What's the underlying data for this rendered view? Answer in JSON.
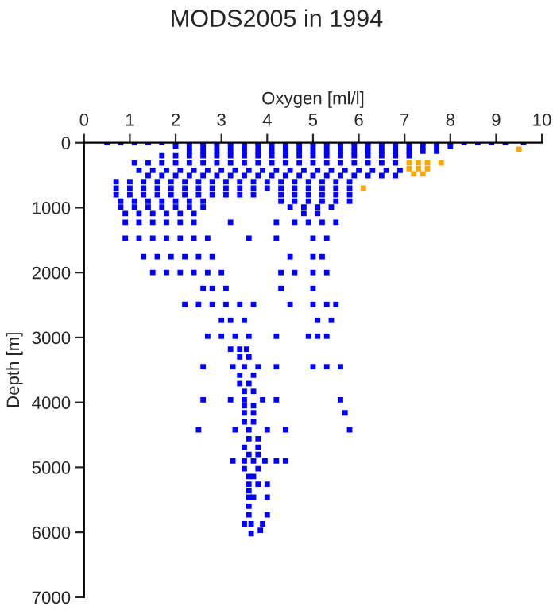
{
  "chart_data": {
    "type": "scatter",
    "title": "MODS2005 in 1994",
    "xlabel": "Oxygen [ml/l]",
    "ylabel": "Depth [m]",
    "xlim": [
      0,
      10
    ],
    "xticks": [
      0,
      1,
      2,
      3,
      4,
      5,
      6,
      7,
      8,
      9,
      10
    ],
    "ylim": [
      7000,
      0
    ],
    "yticks": [
      0,
      1000,
      2000,
      3000,
      4000,
      5000,
      6000,
      7000
    ],
    "grid": false,
    "legend": false,
    "marker": "square",
    "series": [
      {
        "color": "#0000ff",
        "x": [
          0.5,
          0.8,
          1.1,
          1.4,
          1.7,
          2.0,
          2.3,
          2.6,
          2.9,
          3.2,
          3.5,
          3.8,
          4.1,
          4.4,
          4.7,
          5.0,
          5.3,
          5.6,
          5.9,
          6.2,
          6.5,
          6.8,
          7.1,
          7.4,
          7.7,
          8.0,
          8.3,
          8.6,
          8.9,
          9.2,
          9.6
        ],
        "values": [
          0,
          0,
          0,
          0,
          0,
          0,
          0,
          0,
          0,
          0,
          0,
          0,
          0,
          0,
          0,
          0,
          0,
          0,
          0,
          0,
          0,
          0,
          0,
          0,
          0,
          0,
          0,
          0,
          0,
          0,
          0
        ]
      },
      {
        "color": "#0000ff",
        "x": [
          2.0,
          2.3,
          2.6,
          2.9,
          3.2,
          3.5,
          3.8,
          4.1,
          4.4,
          4.7,
          5.0,
          5.3,
          5.6,
          5.9,
          6.2,
          6.5,
          6.8,
          7.1,
          7.4,
          7.7,
          8.0
        ],
        "values": [
          60,
          60,
          60,
          60,
          60,
          60,
          60,
          60,
          60,
          60,
          60,
          60,
          60,
          60,
          60,
          60,
          60,
          60,
          60,
          60,
          60
        ]
      },
      {
        "color": "#0000ff",
        "x": [
          2.3,
          2.6,
          2.9,
          3.2,
          3.5,
          3.8,
          4.1,
          4.4,
          4.7,
          5.0,
          5.3,
          5.6,
          5.9,
          6.2,
          6.5,
          6.8,
          7.1,
          7.4,
          7.7
        ],
        "values": [
          130,
          130,
          130,
          130,
          130,
          130,
          130,
          130,
          130,
          130,
          130,
          130,
          130,
          130,
          130,
          130,
          130,
          130,
          130
        ]
      },
      {
        "color": "#0000ff",
        "x": [
          1.7,
          2.0,
          2.3,
          2.6,
          2.9,
          3.2,
          3.5,
          3.8,
          4.1,
          4.4,
          4.7,
          5.0,
          5.3,
          5.6,
          5.9,
          6.2,
          6.5,
          6.8,
          7.1
        ],
        "values": [
          200,
          200,
          200,
          200,
          200,
          200,
          200,
          200,
          200,
          200,
          200,
          200,
          200,
          200,
          200,
          200,
          200,
          200,
          200
        ]
      },
      {
        "color": "#0000ff",
        "x": [
          1.1,
          1.4,
          1.7,
          2.0,
          2.3,
          2.6,
          2.9,
          3.2,
          3.5,
          3.8,
          4.1,
          4.4,
          4.7,
          5.0,
          5.3,
          5.6,
          5.9,
          6.2,
          6.5,
          6.8
        ],
        "values": [
          310,
          310,
          310,
          310,
          310,
          310,
          310,
          310,
          310,
          310,
          310,
          310,
          310,
          310,
          310,
          310,
          310,
          310,
          310,
          310
        ]
      },
      {
        "color": "#0000ff",
        "x": [
          1.2,
          1.5,
          1.8,
          2.1,
          2.4,
          2.7,
          3.0,
          3.3,
          3.6,
          3.9,
          4.2,
          4.5,
          4.8,
          5.1,
          5.4,
          5.7,
          6.0,
          6.3,
          6.6,
          6.9
        ],
        "values": [
          425,
          425,
          425,
          425,
          425,
          425,
          425,
          425,
          425,
          425,
          425,
          425,
          425,
          425,
          425,
          425,
          425,
          425,
          425,
          425
        ]
      },
      {
        "color": "#0000ff",
        "x": [
          1.4,
          1.7,
          2.0,
          2.3,
          2.6,
          2.9,
          3.2,
          3.5,
          3.8,
          4.1,
          4.4,
          4.7,
          5.0,
          5.3,
          5.6,
          5.9,
          6.2,
          6.5,
          6.8
        ],
        "values": [
          505,
          505,
          505,
          505,
          505,
          505,
          505,
          505,
          505,
          505,
          505,
          505,
          505,
          505,
          505,
          505,
          505,
          505,
          505
        ]
      },
      {
        "color": "#0000ff",
        "x": [
          0.7,
          1.0,
          1.3,
          1.6,
          1.9,
          2.2,
          2.5,
          2.8,
          3.1,
          3.4,
          3.7,
          4.0,
          4.3,
          4.6,
          4.9,
          5.2,
          5.5,
          5.8
        ],
        "values": [
          600,
          600,
          600,
          600,
          600,
          600,
          600,
          600,
          600,
          600,
          600,
          600,
          600,
          600,
          600,
          600,
          600,
          600
        ]
      },
      {
        "color": "#0000ff",
        "x": [
          0.7,
          1.0,
          1.3,
          1.6,
          1.9,
          2.2,
          2.5,
          2.8,
          3.1,
          3.4,
          3.7,
          4.0,
          4.3,
          4.6,
          4.9,
          5.2,
          5.5,
          5.8
        ],
        "values": [
          700,
          700,
          700,
          700,
          700,
          700,
          700,
          700,
          700,
          700,
          700,
          700,
          700,
          700,
          700,
          700,
          700,
          700
        ]
      },
      {
        "color": "#0000ff",
        "x": [
          0.7,
          1.0,
          1.3,
          1.6,
          1.9,
          2.2,
          2.5,
          2.8,
          3.1,
          3.4,
          3.7,
          4.3,
          4.6,
          4.9,
          5.2,
          5.5,
          5.8
        ],
        "values": [
          800,
          800,
          800,
          800,
          800,
          800,
          800,
          800,
          800,
          800,
          800,
          800,
          800,
          800,
          800,
          800,
          800
        ]
      },
      {
        "color": "#0000ff",
        "x": [
          0.8,
          1.1,
          1.4,
          1.7,
          2.0,
          2.3,
          2.6,
          4.3,
          4.6,
          4.9,
          5.2,
          5.5,
          5.8
        ],
        "values": [
          900,
          900,
          900,
          900,
          900,
          900,
          900,
          900,
          900,
          900,
          900,
          900,
          900
        ]
      },
      {
        "color": "#0000ff",
        "x": [
          0.8,
          1.1,
          1.4,
          1.7,
          2.0,
          2.3,
          2.6,
          4.5,
          4.8,
          5.1,
          5.4
        ],
        "values": [
          990,
          990,
          990,
          990,
          990,
          990,
          990,
          990,
          990,
          990,
          990
        ]
      },
      {
        "color": "#0000ff",
        "x": [
          0.9,
          1.2,
          1.5,
          1.8,
          2.1,
          2.4,
          4.8,
          5.1
        ],
        "values": [
          1090,
          1090,
          1090,
          1090,
          1090,
          1090,
          1090,
          1090
        ]
      },
      {
        "color": "#0000ff",
        "x": [
          0.9,
          1.2,
          1.5,
          1.8,
          2.1,
          2.4,
          3.2,
          4.2,
          4.6,
          4.9,
          5.2,
          5.5
        ],
        "values": [
          1225,
          1225,
          1225,
          1225,
          1225,
          1225,
          1225,
          1225,
          1225,
          1225,
          1225,
          1225
        ]
      },
      {
        "color": "#0000ff",
        "x": [
          0.9,
          1.2,
          1.5,
          1.8,
          2.1,
          2.4,
          2.7,
          3.6,
          4.2,
          5.0,
          5.3
        ],
        "values": [
          1470,
          1470,
          1470,
          1470,
          1470,
          1470,
          1470,
          1470,
          1470,
          1470,
          1470
        ]
      },
      {
        "color": "#0000ff",
        "x": [
          1.3,
          1.6,
          1.9,
          2.2,
          2.5,
          2.8,
          4.5,
          5.0,
          5.2
        ],
        "values": [
          1755,
          1755,
          1755,
          1755,
          1755,
          1755,
          1755,
          1755,
          1755
        ]
      },
      {
        "color": "#0000ff",
        "x": [
          1.5,
          1.8,
          2.1,
          2.4,
          2.7,
          3.0,
          4.3,
          4.6,
          5.0,
          5.3
        ],
        "values": [
          2000,
          2000,
          2000,
          2000,
          2000,
          2000,
          2000,
          2000,
          2000,
          2000
        ]
      },
      {
        "color": "#0000ff",
        "x": [
          2.6,
          2.8,
          3.1,
          4.3,
          5.0
        ],
        "values": [
          2245,
          2245,
          2245,
          2245,
          2245
        ]
      },
      {
        "color": "#0000ff",
        "x": [
          2.2,
          2.5,
          2.8,
          3.1,
          3.4,
          3.7,
          4.5,
          5.0,
          5.3,
          5.5
        ],
        "values": [
          2490,
          2490,
          2490,
          2490,
          2490,
          2490,
          2490,
          2490,
          2490,
          2490
        ]
      },
      {
        "color": "#0000ff",
        "x": [
          3.0,
          3.2,
          3.5,
          5.1,
          5.4
        ],
        "values": [
          2735,
          2735,
          2735,
          2735,
          2735
        ]
      },
      {
        "color": "#0000ff",
        "x": [
          2.7,
          3.0,
          3.3,
          3.6,
          4.2,
          4.9,
          5.1,
          5.3
        ],
        "values": [
          2980,
          2980,
          2980,
          2980,
          2980,
          2980,
          2980,
          2980
        ]
      },
      {
        "color": "#0000ff",
        "x": [
          3.2,
          3.4,
          3.55
        ],
        "values": [
          3180,
          3180,
          3180
        ]
      },
      {
        "color": "#0000ff",
        "x": [
          3.4,
          3.6
        ],
        "values": [
          3300,
          3300
        ]
      },
      {
        "color": "#0000ff",
        "x": [
          2.6,
          3.25,
          3.5,
          3.8,
          4.2,
          5.0,
          5.3,
          5.6
        ],
        "values": [
          3450,
          3450,
          3450,
          3450,
          3450,
          3450,
          3450,
          3450
        ]
      },
      {
        "color": "#0000ff",
        "x": [
          3.4,
          3.7
        ],
        "values": [
          3580,
          3580
        ]
      },
      {
        "color": "#0000ff",
        "x": [
          3.4,
          3.6
        ],
        "values": [
          3710,
          3710
        ]
      },
      {
        "color": "#0000ff",
        "x": [
          3.5,
          3.7
        ],
        "values": [
          3830,
          3830
        ]
      },
      {
        "color": "#0000ff",
        "x": [
          2.6,
          3.2,
          3.5,
          3.9,
          4.2,
          5.6
        ],
        "values": [
          3960,
          3960,
          3960,
          3960,
          3960,
          3960
        ]
      },
      {
        "color": "#0000ff",
        "x": [
          3.5,
          3.7
        ],
        "values": [
          4050,
          4050
        ]
      },
      {
        "color": "#0000ff",
        "x": [
          3.5,
          3.7,
          5.7
        ],
        "values": [
          4160,
          4160,
          4160
        ]
      },
      {
        "color": "#0000ff",
        "x": [
          3.5,
          3.7
        ],
        "values": [
          4300,
          4300
        ]
      },
      {
        "color": "#0000ff",
        "x": [
          2.5,
          3.3,
          3.6,
          4.0,
          4.4,
          5.8
        ],
        "values": [
          4420,
          4420,
          4420,
          4420,
          4420,
          4420
        ]
      },
      {
        "color": "#0000ff",
        "x": [
          3.6,
          3.8
        ],
        "values": [
          4560,
          4560
        ]
      },
      {
        "color": "#0000ff",
        "x": [
          3.5,
          3.8
        ],
        "values": [
          4690,
          4690
        ]
      },
      {
        "color": "#0000ff",
        "x": [
          3.6,
          3.8
        ],
        "values": [
          4800,
          4800
        ]
      },
      {
        "color": "#0000ff",
        "x": [
          3.25,
          3.5,
          3.7,
          3.95,
          4.2,
          4.4
        ],
        "values": [
          4900,
          4900,
          4900,
          4900,
          4900,
          4900
        ]
      },
      {
        "color": "#0000ff",
        "x": [
          3.5,
          3.8
        ],
        "values": [
          5020,
          5020
        ]
      },
      {
        "color": "#0000ff",
        "x": [
          3.6,
          3.7
        ],
        "values": [
          5140,
          5140
        ]
      },
      {
        "color": "#0000ff",
        "x": [
          3.6,
          3.8,
          4.0
        ],
        "values": [
          5260,
          5260,
          5260
        ]
      },
      {
        "color": "#0000ff",
        "x": [
          3.6
        ],
        "values": [
          5360
        ]
      },
      {
        "color": "#0000ff",
        "x": [
          3.6,
          3.7,
          4.0
        ],
        "values": [
          5460,
          5460,
          5460
        ]
      },
      {
        "color": "#0000ff",
        "x": [
          3.6
        ],
        "values": [
          5600
        ]
      },
      {
        "color": "#0000ff",
        "x": [
          3.6,
          4.0
        ],
        "values": [
          5730,
          5730
        ]
      },
      {
        "color": "#0000ff",
        "x": [
          3.5,
          3.65,
          3.9
        ],
        "values": [
          5870,
          5870,
          5870
        ]
      },
      {
        "color": "#0000ff",
        "x": [
          3.85,
          3.65
        ],
        "values": [
          5970,
          6020
        ]
      },
      {
        "color": "#ffa500",
        "x": [
          9.5,
          7.1,
          7.3,
          7.5,
          7.8,
          7.1,
          7.3,
          7.5,
          7.2,
          7.4,
          6.1
        ],
        "values": [
          100,
          310,
          310,
          310,
          310,
          400,
          400,
          400,
          480,
          480,
          700
        ]
      }
    ]
  }
}
